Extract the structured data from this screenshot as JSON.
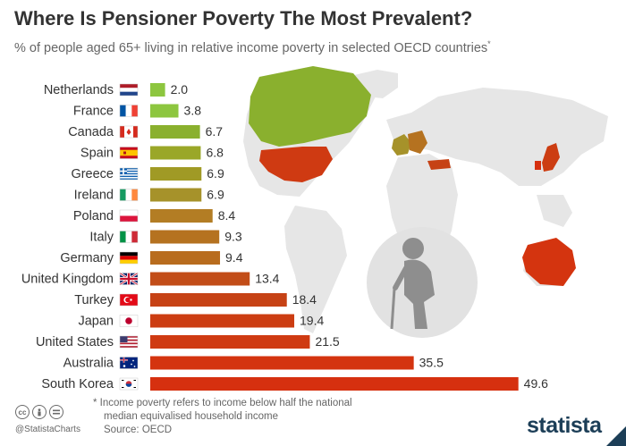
{
  "header": {
    "title": "Where Is Pensioner Poverty The Most Prevalent?",
    "subtitle": "% of people aged 65+ living in relative income poverty in selected OECD countries",
    "subtitle_mark": "*"
  },
  "chart_data": {
    "type": "bar",
    "orientation": "horizontal",
    "title": "Where Is Pensioner Poverty The Most Prevalent?",
    "subtitle": "% of people aged 65+ living in relative income poverty in selected OECD countries*",
    "categories": [
      "Netherlands",
      "France",
      "Canada",
      "Spain",
      "Greece",
      "Ireland",
      "Poland",
      "Italy",
      "Germany",
      "United Kingdom",
      "Turkey",
      "Japan",
      "United States",
      "Australia",
      "South Korea"
    ],
    "values": [
      2.0,
      3.8,
      6.7,
      6.8,
      6.9,
      6.9,
      8.4,
      9.3,
      9.4,
      13.4,
      18.4,
      19.4,
      21.5,
      35.5,
      49.6
    ],
    "value_labels": [
      "2.0",
      "3.8",
      "6.7",
      "6.8",
      "6.9",
      "6.9",
      "8.4",
      "9.3",
      "9.4",
      "13.4",
      "18.4",
      "19.4",
      "21.5",
      "35.5",
      "49.6"
    ],
    "bar_colors": [
      "#8dc63f",
      "#8dc63f",
      "#8ab02e",
      "#9aa728",
      "#a09a25",
      "#a6922a",
      "#b37d24",
      "#b57220",
      "#b86c1e",
      "#c24d18",
      "#c64215",
      "#cc3d12",
      "#cf3a12",
      "#d4340f",
      "#d6300f"
    ],
    "xlim": [
      0,
      50
    ],
    "xlabel": "",
    "ylabel": "",
    "grid": false,
    "legend": "none",
    "background": "world-map"
  },
  "flags": [
    "netherlands-flag-icon",
    "france-flag-icon",
    "canada-flag-icon",
    "spain-flag-icon",
    "greece-flag-icon",
    "ireland-flag-icon",
    "poland-flag-icon",
    "italy-flag-icon",
    "germany-flag-icon",
    "united-kingdom-flag-icon",
    "turkey-flag-icon",
    "japan-flag-icon",
    "united-states-flag-icon",
    "australia-flag-icon",
    "south-korea-flag-icon"
  ],
  "colors": {
    "low": "#8dc63f",
    "high": "#d6300f",
    "map_land": "#e6e6e6",
    "brand": "#1c3e57"
  },
  "footer": {
    "note_line1": "* Income poverty refers to income below half the national",
    "note_line2": "median equivalised household income",
    "source": "Source: OECD",
    "handle": "@StatistaCharts",
    "logo": "statista",
    "cc_icons": [
      "creative-commons-icon",
      "attribution-icon",
      "no-derivatives-icon"
    ]
  }
}
